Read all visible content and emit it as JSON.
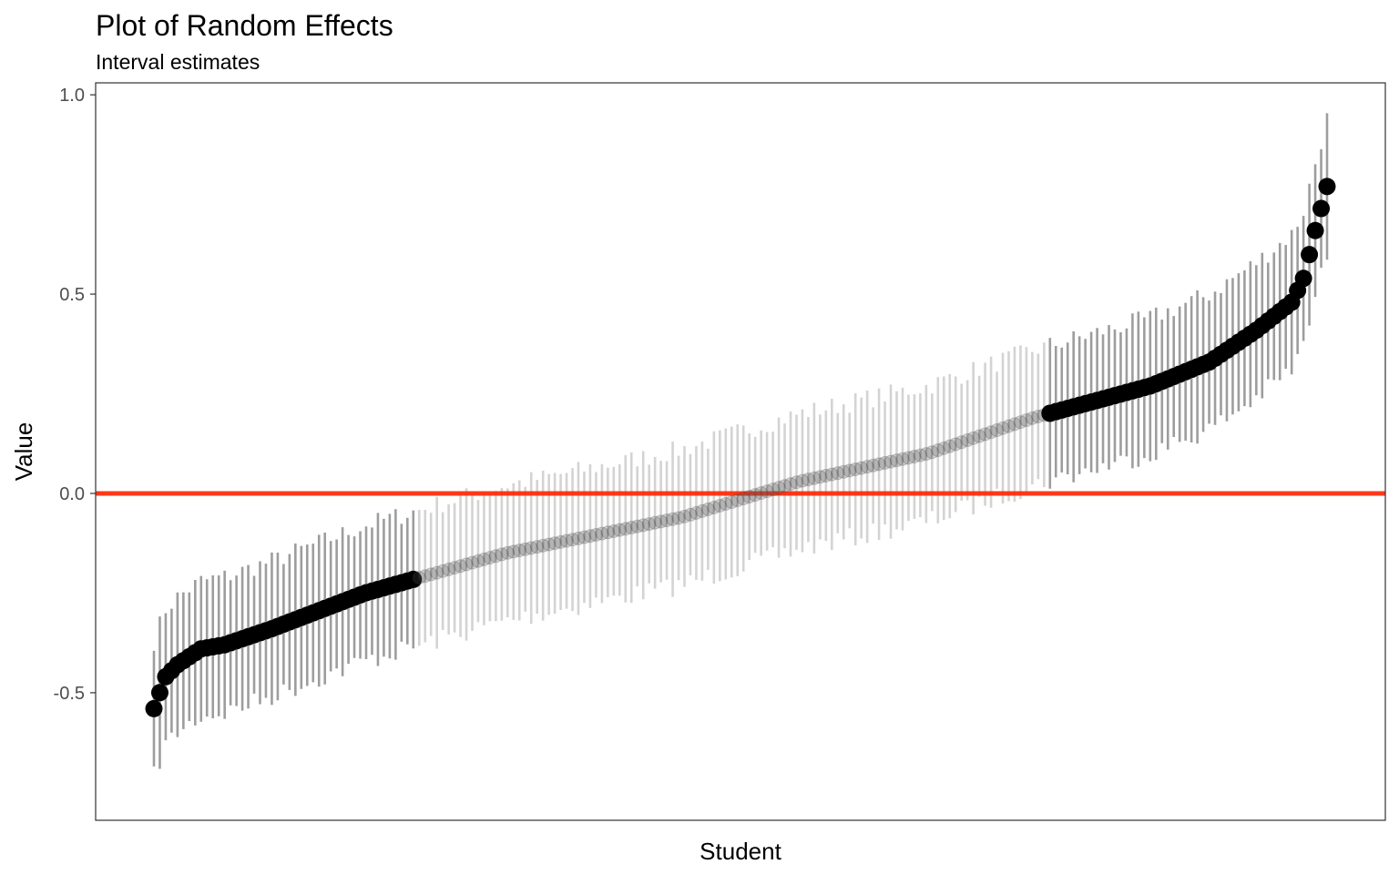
{
  "chart_data": {
    "type": "scatter",
    "title": "Plot of Random Effects",
    "subtitle": "Interval estimates",
    "xlabel": "Student",
    "ylabel": "Value",
    "ylim": [
      -0.82,
      1.03
    ],
    "y_ticks": [
      {
        "value": 1.0,
        "label": "1.0"
      },
      {
        "value": 0.5,
        "label": "0.5"
      },
      {
        "value": 0.0,
        "label": "0.0"
      },
      {
        "value": -0.5,
        "label": "-0.5"
      }
    ],
    "reference_line": {
      "y": 0,
      "color": "#ff2200"
    },
    "colors": {
      "point": "#000000",
      "interval": "#8c8c8c",
      "reference": "#ff2200"
    },
    "grid": false,
    "n_students": 200,
    "estimate_profile": {
      "rank_fraction": [
        0,
        0.01,
        0.02,
        0.04,
        0.06,
        0.1,
        0.18,
        0.3,
        0.45,
        0.55,
        0.66,
        0.75,
        0.85,
        0.9,
        0.94,
        0.97,
        0.98,
        0.99,
        1.0
      ],
      "value": [
        -0.54,
        -0.46,
        -0.43,
        -0.39,
        -0.38,
        -0.34,
        -0.25,
        -0.15,
        -0.06,
        0.03,
        0.1,
        0.19,
        0.27,
        0.33,
        0.41,
        0.48,
        0.54,
        0.66,
        0.77
      ]
    },
    "interval_half_width": 0.17,
    "significant_below_rank": 0.225,
    "significant_above_rank": 0.76
  }
}
